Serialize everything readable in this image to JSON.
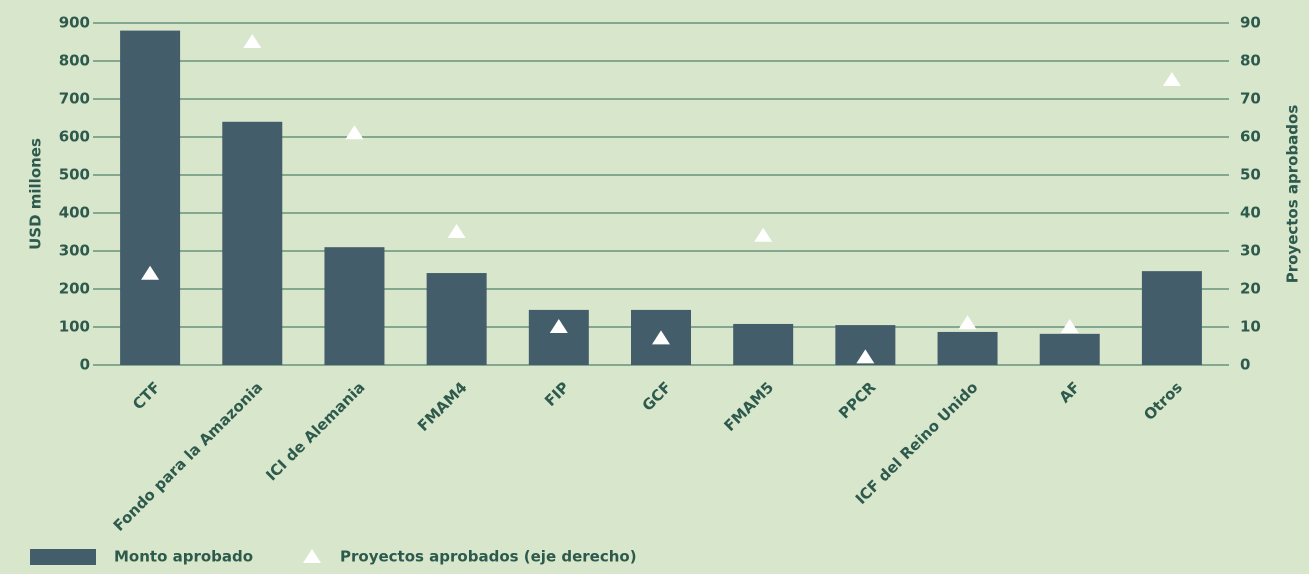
{
  "chart_data": {
    "type": "bar",
    "categories": [
      "CTF",
      "Fondo para la Amazonia",
      "ICI de Alemania",
      "FMAM4",
      "FIP",
      "GCF",
      "FMAM5",
      "PPCR",
      "ICF del Reino Unido",
      "AF",
      "Otros"
    ],
    "series": [
      {
        "name": "Monto aprobado",
        "type": "bar",
        "color": "#445d6b",
        "values": [
          880,
          640,
          310,
          242,
          145,
          145,
          108,
          105,
          87,
          82,
          247
        ]
      },
      {
        "name": "Proyectos aprobados  (eje derecho)",
        "type": "triangle",
        "axis": "y2",
        "color": "#ffffff",
        "values": [
          24,
          85,
          61,
          35,
          10,
          7,
          34,
          2,
          11,
          10,
          75
        ]
      }
    ],
    "ylabel": "USD millones",
    "y2label": "Proyectos aprobados",
    "ylim": [
      0,
      900
    ],
    "yticks": [
      0,
      100,
      200,
      300,
      400,
      500,
      600,
      700,
      800,
      900
    ],
    "y2lim": [
      0,
      90
    ],
    "y2ticks": [
      0,
      10,
      20,
      30,
      40,
      50,
      60,
      70,
      80,
      90
    ],
    "grid": true,
    "legend": "bottom-left"
  }
}
